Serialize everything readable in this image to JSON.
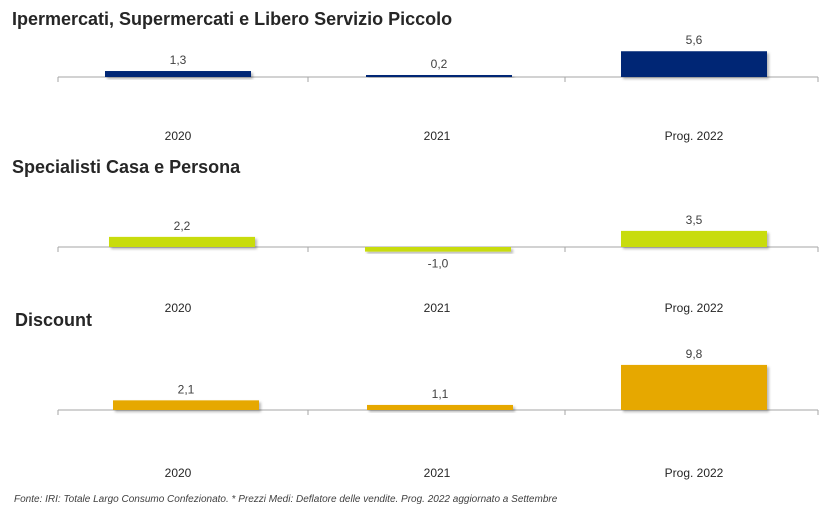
{
  "chart_data": [
    {
      "type": "bar",
      "title": "Ipermercati, Supermercati e Libero Servizio Piccolo",
      "categories": [
        "2020",
        "2021",
        "Prog. 2022"
      ],
      "value_labels": [
        "1,3",
        "0,2",
        "5,6"
      ],
      "values": [
        1.3,
        0.2,
        5.6
      ],
      "color": "#002775"
    },
    {
      "type": "bar",
      "title": "Specialisti Casa e Persona",
      "categories": [
        "2020",
        "2021",
        "Prog. 2022"
      ],
      "value_labels": [
        "2,2",
        "-1,0",
        "3,5"
      ],
      "values": [
        2.2,
        -1.0,
        3.5
      ],
      "color": "#c8dc0a"
    },
    {
      "type": "bar",
      "title": "Discount",
      "categories": [
        "2020",
        "2021",
        "Prog. 2022"
      ],
      "value_labels": [
        "2,1",
        "1,1",
        "9,8"
      ],
      "values": [
        2.1,
        1.1,
        9.8
      ],
      "color": "#e6a800"
    }
  ],
  "negative_label_color": "#c00000",
  "source": "Fonte: IRI: Totale Largo Consumo Confezionato.  * Prezzi Medi: Deflatore delle vendite.  Prog. 2022 aggiornato a Settembre"
}
